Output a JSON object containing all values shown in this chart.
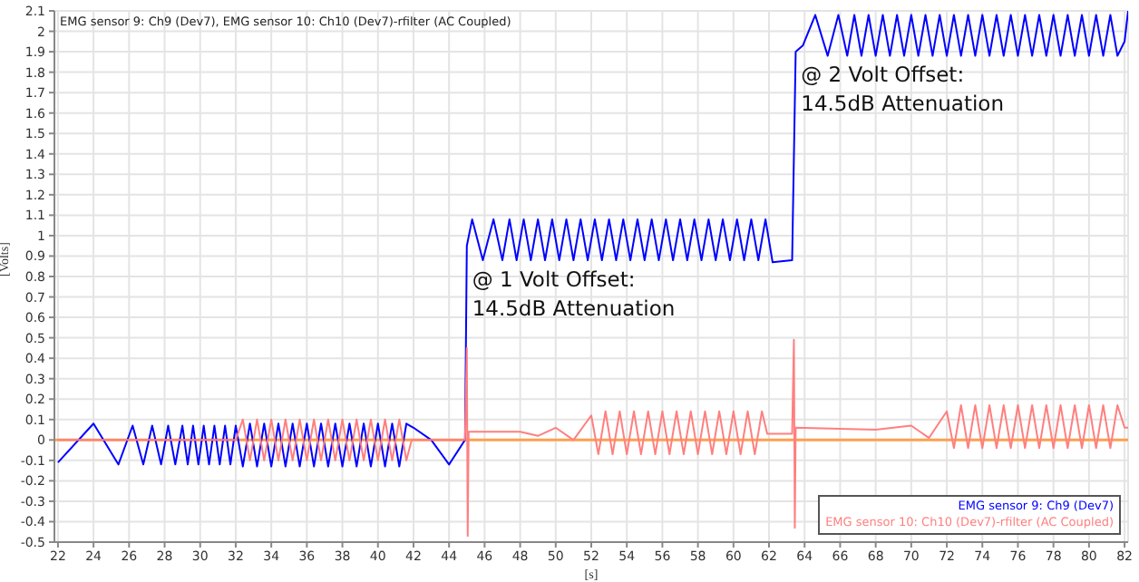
{
  "chart_data": {
    "type": "line",
    "title": "EMG sensor 9: Ch9 (Dev7), EMG sensor 10: Ch10 (Dev7)-rfilter (AC Coupled)",
    "xlabel": "[s]",
    "ylabel": "[Volts]",
    "annotations": [
      "@ 1 Volt Offset:\n14.5dB Attenuation",
      "@ 2 Volt Offset:\n14.5dB Attenuation"
    ],
    "xlim": [
      21.8,
      82.2
    ],
    "xticks": [
      22,
      24,
      26,
      28,
      30,
      32,
      34,
      36,
      38,
      40,
      42,
      44,
      46,
      48,
      50,
      52,
      54,
      56,
      58,
      60,
      62,
      64,
      66,
      68,
      70,
      72,
      74,
      76,
      78,
      80,
      82
    ],
    "ylim": [
      -0.5,
      2.1
    ],
    "yticks": [
      -0.5,
      -0.4,
      -0.3,
      -0.2,
      -0.1,
      0,
      0.1,
      0.2,
      0.3,
      0.4,
      0.5,
      0.6,
      0.7,
      0.8,
      0.9,
      1,
      1.1,
      1.2,
      1.3,
      1.4,
      1.5,
      1.6,
      1.7,
      1.8,
      1.9,
      2,
      2.1
    ],
    "grid": true,
    "legend": "bottom right",
    "marker": "none",
    "line_style": "solid",
    "ref_lines": [
      {
        "axis": "y",
        "value": 0,
        "label": null,
        "color": "#ffa050"
      }
    ],
    "series": [
      {
        "name": "EMG sensor 9: Ch9 (Dev7)",
        "color": "#0000ff",
        "x": [
          22,
          24,
          25.4,
          26.2,
          26.8,
          27.3,
          27.8,
          28.2,
          28.6,
          29,
          29.3,
          29.6,
          29.9,
          30.2,
          30.5,
          30.8,
          31.1,
          31.4,
          31.7,
          32,
          32.4,
          32.8,
          33.2,
          33.6,
          34,
          34.4,
          34.8,
          35.2,
          35.6,
          36,
          36.4,
          36.8,
          37.2,
          37.6,
          38,
          38.4,
          38.8,
          39.2,
          39.6,
          40,
          40.4,
          40.8,
          41.2,
          41.6,
          42,
          43,
          44,
          44.9,
          45,
          45.3,
          45.9,
          46.5,
          47,
          47.4,
          47.8,
          48.2,
          48.6,
          49,
          49.4,
          49.8,
          50.2,
          50.6,
          51,
          51.4,
          51.8,
          52.2,
          52.6,
          53,
          53.4,
          53.8,
          54.2,
          54.6,
          55,
          55.4,
          55.8,
          56.2,
          56.6,
          57,
          57.4,
          57.8,
          58.2,
          58.6,
          59,
          59.4,
          59.8,
          60.2,
          60.6,
          61,
          61.4,
          61.8,
          62.2,
          63.3,
          63.5,
          63.9,
          64.6,
          65.3,
          65.9,
          66.4,
          66.8,
          67.2,
          67.6,
          68,
          68.4,
          68.8,
          69.2,
          69.6,
          70,
          70.4,
          70.8,
          71.2,
          71.6,
          72,
          72.4,
          72.8,
          73.2,
          73.6,
          74,
          74.4,
          74.8,
          75.2,
          75.6,
          76,
          76.4,
          76.8,
          77.2,
          77.6,
          78,
          78.4,
          78.8,
          79.2,
          79.6,
          80,
          80.4,
          80.8,
          81.2,
          81.6,
          82,
          82.2
        ],
        "values": [
          -0.11,
          0.08,
          -0.12,
          0.07,
          -0.12,
          0.07,
          -0.12,
          0.07,
          -0.12,
          0.07,
          -0.12,
          0.07,
          -0.12,
          0.07,
          -0.12,
          0.07,
          -0.12,
          0.07,
          -0.12,
          0.07,
          -0.13,
          0.08,
          -0.13,
          0.08,
          -0.13,
          0.08,
          -0.13,
          0.08,
          -0.13,
          0.08,
          -0.13,
          0.08,
          -0.13,
          0.08,
          -0.13,
          0.08,
          -0.13,
          0.08,
          -0.13,
          0.08,
          -0.13,
          0.08,
          -0.13,
          0.08,
          0.06,
          0,
          -0.12,
          0,
          0.95,
          1.08,
          0.88,
          1.08,
          0.88,
          1.08,
          0.88,
          1.08,
          0.88,
          1.08,
          0.88,
          1.08,
          0.88,
          1.08,
          0.88,
          1.08,
          0.88,
          1.08,
          0.88,
          1.08,
          0.88,
          1.08,
          0.88,
          1.08,
          0.88,
          1.08,
          0.88,
          1.08,
          0.88,
          1.08,
          0.88,
          1.08,
          0.88,
          1.08,
          0.88,
          1.08,
          0.88,
          1.08,
          0.88,
          1.08,
          0.88,
          1.08,
          0.87,
          0.88,
          1.9,
          1.93,
          2.08,
          1.88,
          2.08,
          1.88,
          2.08,
          1.88,
          2.08,
          1.88,
          2.08,
          1.88,
          2.08,
          1.88,
          2.08,
          1.88,
          2.08,
          1.88,
          2.08,
          1.88,
          2.08,
          1.88,
          2.08,
          1.88,
          2.08,
          1.88,
          2.08,
          1.88,
          2.08,
          1.88,
          2.08,
          1.88,
          2.08,
          1.88,
          2.08,
          1.88,
          2.08,
          1.88,
          2.08,
          1.88,
          2.08,
          1.88,
          2.08,
          1.88,
          1.95,
          2.1
        ]
      },
      {
        "name": "EMG sensor 10: Ch10 (Dev7)-rfilter (AC Coupled)",
        "color": "#ff7f7f",
        "x": [
          22,
          32,
          32.4,
          32.8,
          33.2,
          33.6,
          34,
          34.4,
          34.8,
          35.2,
          35.6,
          36,
          36.4,
          36.8,
          37.2,
          37.6,
          38,
          38.4,
          38.8,
          39.2,
          39.6,
          40,
          40.4,
          40.8,
          41.2,
          41.6,
          41.9,
          44.9,
          45,
          45.05,
          45.1,
          48,
          49,
          50,
          51,
          52,
          52.4,
          52.8,
          53.2,
          53.6,
          54,
          54.4,
          54.8,
          55.2,
          55.6,
          56,
          56.4,
          56.8,
          57.2,
          57.6,
          58,
          58.4,
          58.8,
          59.2,
          59.6,
          60,
          60.4,
          60.8,
          61.2,
          61.6,
          61.9,
          63.3,
          63.4,
          63.45,
          63.5,
          68,
          70,
          71,
          72,
          72.4,
          72.8,
          73.2,
          73.6,
          74,
          74.4,
          74.8,
          75.2,
          75.6,
          76,
          76.4,
          76.8,
          77.2,
          77.6,
          78,
          78.4,
          78.8,
          79.2,
          79.6,
          80,
          80.4,
          80.8,
          81.2,
          81.6,
          82,
          82.2
        ],
        "values": [
          0,
          0,
          0.1,
          -0.1,
          0.1,
          -0.1,
          0.1,
          -0.1,
          0.1,
          -0.1,
          0.1,
          -0.1,
          0.1,
          -0.1,
          0.1,
          -0.1,
          0.1,
          -0.1,
          0.1,
          -0.1,
          0.1,
          -0.1,
          0.1,
          -0.1,
          0.1,
          -0.1,
          0,
          0,
          0.45,
          -0.47,
          0.04,
          0.04,
          0.02,
          0.06,
          0,
          0.12,
          -0.07,
          0.14,
          -0.07,
          0.14,
          -0.07,
          0.14,
          -0.07,
          0.14,
          -0.07,
          0.14,
          -0.07,
          0.14,
          -0.07,
          0.14,
          -0.07,
          0.14,
          -0.07,
          0.14,
          -0.07,
          0.14,
          -0.07,
          0.14,
          -0.07,
          0.14,
          0.03,
          0.03,
          0.49,
          -0.43,
          0.06,
          0.05,
          0.07,
          0.01,
          0.14,
          -0.04,
          0.17,
          -0.04,
          0.17,
          -0.04,
          0.17,
          -0.04,
          0.17,
          -0.04,
          0.17,
          -0.04,
          0.17,
          -0.04,
          0.17,
          -0.04,
          0.17,
          -0.04,
          0.17,
          -0.04,
          0.17,
          -0.04,
          0.17,
          -0.04,
          0.17,
          0.06,
          0.06
        ]
      }
    ]
  }
}
